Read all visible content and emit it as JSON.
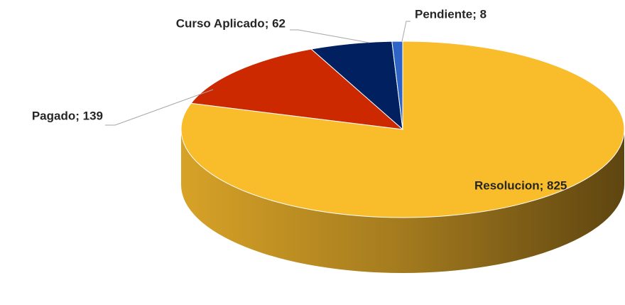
{
  "chart_data": {
    "type": "pie3d",
    "values": [
      825,
      139,
      62,
      8
    ],
    "value_labels": [
      "Resolucion; 825",
      "Pagado; 139",
      "Curso Aplicado; 62",
      "Pendiente; 8"
    ],
    "colors": [
      "#f9bc2a",
      "#cc2900",
      "#002060",
      "#2e64c8"
    ]
  }
}
